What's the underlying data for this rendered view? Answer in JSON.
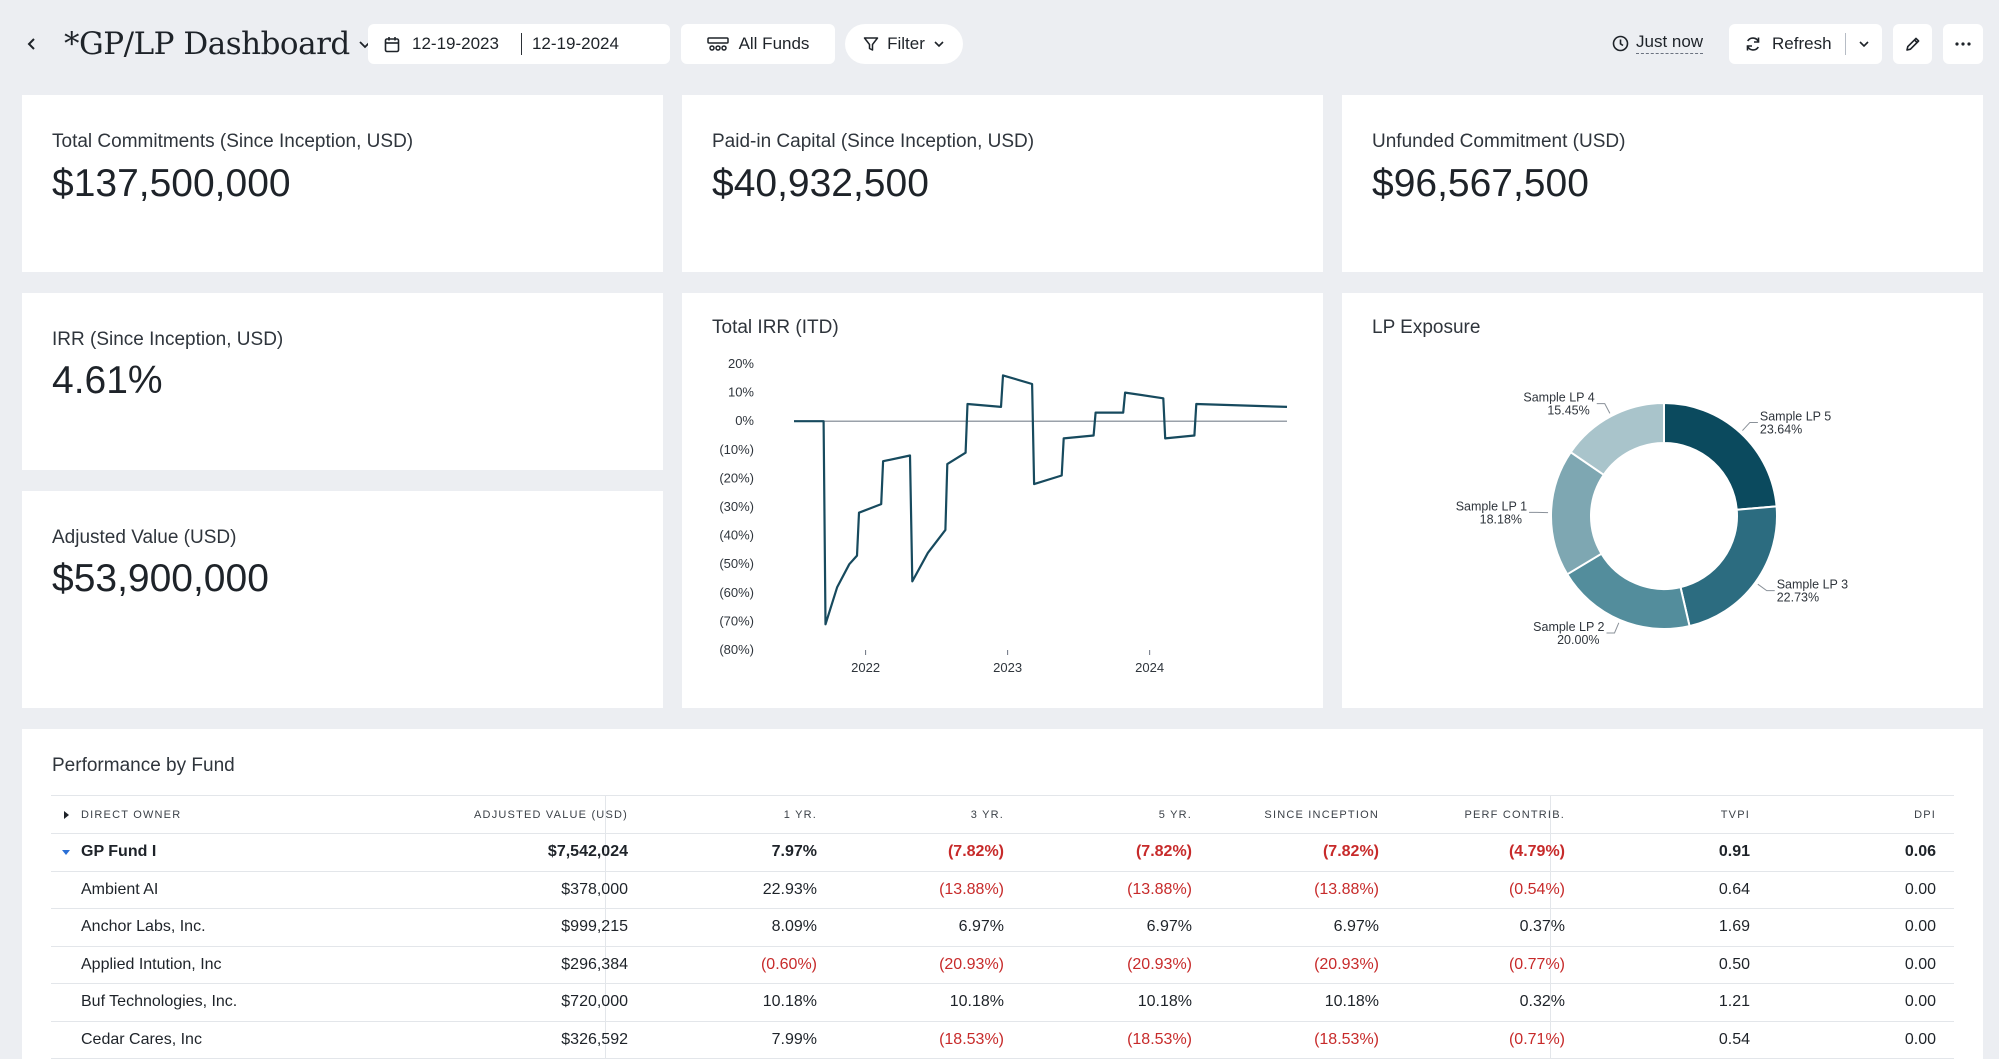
{
  "header": {
    "title": "*GP/LP Dashboard",
    "date_start": "12-19-2023",
    "date_end": "12-19-2024",
    "funds_label": "All Funds",
    "filter_label": "Filter",
    "last_updated": "Just now",
    "refresh_label": "Refresh"
  },
  "kpis": {
    "total_commitments": {
      "label": "Total Commitments (Since Inception, USD)",
      "value": "$137,500,000"
    },
    "paid_in": {
      "label": "Paid-in Capital (Since Inception, USD)",
      "value": "$40,932,500"
    },
    "unfunded": {
      "label": "Unfunded Commitment (USD)",
      "value": "$96,567,500"
    },
    "irr": {
      "label": "IRR (Since Inception, USD)",
      "value": "4.61%"
    },
    "adjusted_value": {
      "label": "Adjusted Value (USD)",
      "value": "$53,900,000"
    }
  },
  "chart_data": [
    {
      "type": "line",
      "title": "Total IRR (ITD)",
      "y_ticks": [
        "20%",
        "10%",
        "0%",
        "(10%)",
        "(20%)",
        "(30%)",
        "(40%)",
        "(50%)",
        "(60%)",
        "(70%)",
        "(80%)"
      ],
      "ylim": [
        -80,
        20
      ],
      "x_ticks": [
        "2022",
        "2023",
        "2024"
      ],
      "xlim": [
        "2021-07-01",
        "2024-12-19"
      ],
      "series_color": "#174a5e",
      "series": [
        {
          "points": [
            [
              "2021-07-01",
              0
            ],
            [
              "2021-09-15",
              0
            ],
            [
              "2021-09-20",
              -71
            ],
            [
              "2021-10-20",
              -58
            ],
            [
              "2021-11-20",
              -50
            ],
            [
              "2021-12-10",
              -47
            ],
            [
              "2021-12-15",
              -32
            ],
            [
              "2022-02-10",
              -29
            ],
            [
              "2022-02-15",
              -14
            ],
            [
              "2022-04-25",
              -12
            ],
            [
              "2022-05-01",
              -56
            ],
            [
              "2022-06-10",
              -46
            ],
            [
              "2022-07-25",
              -38
            ],
            [
              "2022-07-30",
              -15
            ],
            [
              "2022-09-15",
              -11
            ],
            [
              "2022-09-20",
              6
            ],
            [
              "2022-12-15",
              5
            ],
            [
              "2022-12-20",
              16
            ],
            [
              "2023-03-05",
              13
            ],
            [
              "2023-03-10",
              -22
            ],
            [
              "2023-05-20",
              -19
            ],
            [
              "2023-05-25",
              -6
            ],
            [
              "2023-08-10",
              -5
            ],
            [
              "2023-08-15",
              3
            ],
            [
              "2023-10-25",
              3
            ],
            [
              "2023-10-30",
              10
            ],
            [
              "2024-02-05",
              8
            ],
            [
              "2024-02-10",
              -6
            ],
            [
              "2024-04-25",
              -5
            ],
            [
              "2024-04-30",
              6
            ],
            [
              "2024-12-19",
              5
            ]
          ]
        }
      ]
    },
    {
      "type": "pie",
      "title": "LP Exposure",
      "slices": [
        {
          "label": "Sample LP 5",
          "value": 23.64,
          "display": "23.64%",
          "color": "#0b4a5e"
        },
        {
          "label": "Sample LP 3",
          "value": 22.73,
          "display": "22.73%",
          "color": "#2c6c80"
        },
        {
          "label": "Sample LP 2",
          "value": 20.0,
          "display": "20.00%",
          "color": "#538d9c"
        },
        {
          "label": "Sample LP 1",
          "value": 18.18,
          "display": "18.18%",
          "color": "#7ea7b2"
        },
        {
          "label": "Sample LP 4",
          "value": 15.45,
          "display": "15.45%",
          "color": "#a9c4cb"
        }
      ]
    }
  ],
  "performance": {
    "title": "Performance by Fund",
    "columns": [
      "DIRECT OWNER",
      "ADJUSTED VALUE (USD)",
      "1 YR.",
      "3 YR.",
      "5 YR.",
      "SINCE INCEPTION",
      "PERF CONTRIB.",
      "TVPI",
      "DPI"
    ],
    "fund": {
      "name": "GP Fund I",
      "adj": "$7,542,024",
      "y1": "7.97%",
      "y3": "(7.82%)",
      "y5": "(7.82%)",
      "si": "(7.82%)",
      "pc": "(4.79%)",
      "tvpi": "0.91",
      "dpi": "0.06"
    },
    "rows": [
      {
        "name": "Ambient AI",
        "adj": "$378,000",
        "y1": "22.93%",
        "y3": "(13.88%)",
        "y5": "(13.88%)",
        "si": "(13.88%)",
        "pc": "(0.54%)",
        "tvpi": "0.64",
        "dpi": "0.00"
      },
      {
        "name": "Anchor Labs, Inc.",
        "adj": "$999,215",
        "y1": "8.09%",
        "y3": "6.97%",
        "y5": "6.97%",
        "si": "6.97%",
        "pc": "0.37%",
        "tvpi": "1.69",
        "dpi": "0.00"
      },
      {
        "name": "Applied Intution, Inc",
        "adj": "$296,384",
        "y1": "(0.60%)",
        "y3": "(20.93%)",
        "y5": "(20.93%)",
        "si": "(20.93%)",
        "pc": "(0.77%)",
        "tvpi": "0.50",
        "dpi": "0.00"
      },
      {
        "name": "Buf Technologies, Inc.",
        "adj": "$720,000",
        "y1": "10.18%",
        "y3": "10.18%",
        "y5": "10.18%",
        "si": "10.18%",
        "pc": "0.32%",
        "tvpi": "1.21",
        "dpi": "0.00"
      },
      {
        "name": "Cedar Cares, Inc",
        "adj": "$326,592",
        "y1": "7.99%",
        "y3": "(18.53%)",
        "y5": "(18.53%)",
        "si": "(18.53%)",
        "pc": "(0.71%)",
        "tvpi": "0.54",
        "dpi": "0.00"
      }
    ]
  }
}
